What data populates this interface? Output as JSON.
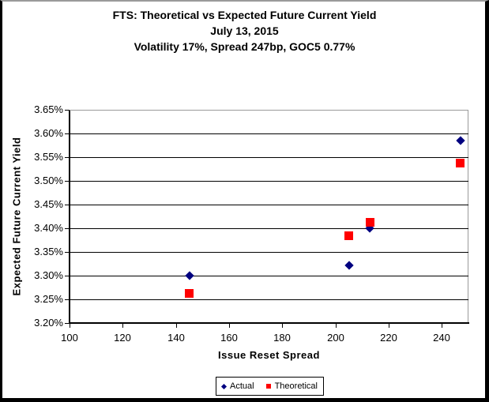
{
  "title": {
    "line1": "FTS: Theoretical vs Expected Future Current Yield",
    "line2": "July 13, 2015",
    "line3": "Volatility 17%, Spread 247bp, GOC5 0.77%"
  },
  "chart_data": {
    "type": "scatter",
    "title": "FTS: Theoretical vs Expected Future Current Yield",
    "subtitle": [
      "July 13, 2015",
      "Volatility 17%, Spread 247bp, GOC5 0.77%"
    ],
    "xlabel": "Issue Reset Spread",
    "ylabel": "Expected Future Current Yield",
    "xlim": [
      100,
      250
    ],
    "ylim": [
      3.2,
      3.65
    ],
    "x_ticks": [
      100,
      120,
      140,
      160,
      180,
      200,
      220,
      240
    ],
    "y_tick_step": 0.05,
    "y_tick_format": "0.00%",
    "grid": "horizontal",
    "legend_position": "bottom-center",
    "series": [
      {
        "name": "Actual",
        "marker": "diamond",
        "color": "#000080",
        "points": [
          [
            145,
            3.3
          ],
          [
            205,
            3.322
          ],
          [
            213,
            3.4
          ],
          [
            247,
            3.585
          ]
        ]
      },
      {
        "name": "Theoretical",
        "marker": "square",
        "color": "#FF0000",
        "points": [
          [
            145,
            3.262
          ],
          [
            205,
            3.385
          ],
          [
            213,
            3.412
          ],
          [
            247,
            3.538
          ]
        ]
      }
    ]
  },
  "colors": {
    "actual": "#000080",
    "theoretical": "#FF0000",
    "gridline": "#000000",
    "outer_gridline": "#9a9a9a"
  }
}
